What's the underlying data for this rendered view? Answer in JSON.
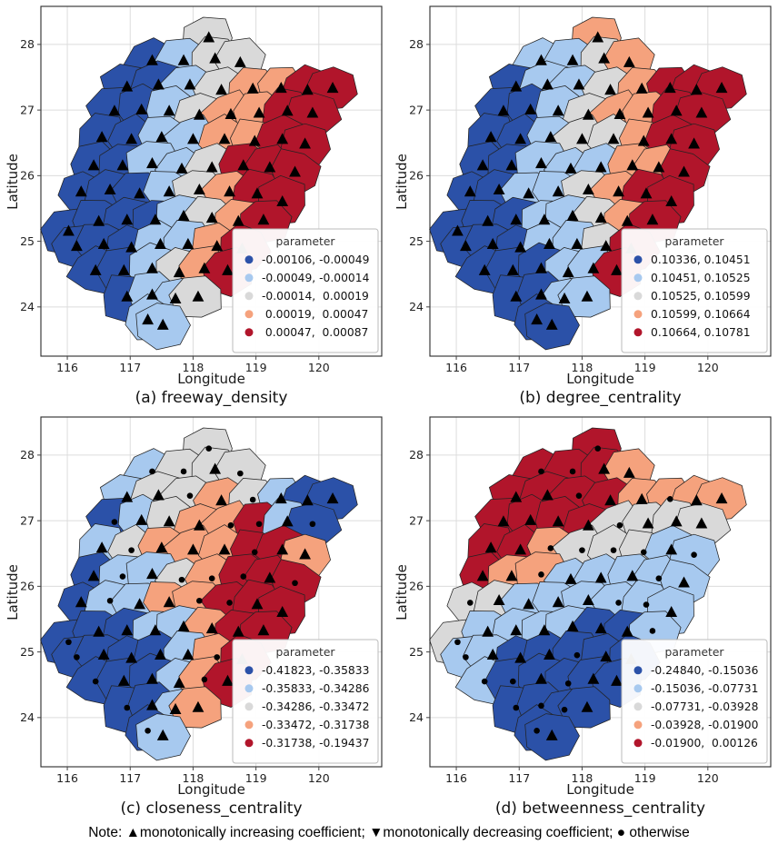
{
  "figure": {
    "note": "Note: ▲monotonically increasing coefficient; ▼monotonically decreasing coefficient; ● otherwise",
    "note_markers": [
      {
        "symbol": "▲",
        "meaning": "monotonically increasing coefficient"
      },
      {
        "symbol": "▼",
        "meaning": "monotonically decreasing coefficient"
      },
      {
        "symbol": "●",
        "meaning": "otherwise"
      }
    ]
  },
  "axes": {
    "xlabel": "Longitude",
    "ylabel": "Latitude",
    "xticks": [
      116,
      117,
      118,
      119,
      120
    ],
    "yticks": [
      24,
      25,
      26,
      27,
      28
    ],
    "xlim": [
      115.58,
      121.0
    ],
    "ylim": [
      23.25,
      28.58
    ],
    "grid": true
  },
  "palette": {
    "class_colors": [
      "#2b51a8",
      "#a7c9ef",
      "#d9d9d9",
      "#f5a27d",
      "#b1152b"
    ],
    "class_names": [
      "dark-blue",
      "light-blue",
      "gray",
      "salmon",
      "dark-red"
    ],
    "grid_color": "#dcdcdc",
    "border_color": "#2a2a2a",
    "marker_color": "#000000",
    "legend_bg": "#ffffff",
    "legend_border": "#bbbbbb"
  },
  "chart_data": [
    {
      "type": "choropleth",
      "panel": "a",
      "caption": "(a) freeway_density",
      "variable": "freeway_density",
      "legend": {
        "title": "parameter",
        "classes": [
          {
            "label": "-0.00106, -0.00049",
            "range": [
              -0.00106,
              -0.00049
            ],
            "color": "#2b51a8"
          },
          {
            "label": "-0.00049, -0.00014",
            "range": [
              -0.00049,
              -0.00014
            ],
            "color": "#a7c9ef"
          },
          {
            "label": "-0.00014,  0.00019",
            "range": [
              -0.00014,
              0.00019
            ],
            "color": "#d9d9d9"
          },
          {
            "label": " 0.00019,  0.00047",
            "range": [
              0.00019,
              0.00047
            ],
            "color": "#f5a27d"
          },
          {
            "label": " 0.00047,  0.00087",
            "range": [
              0.00047,
              0.00087
            ],
            "color": "#b1152b"
          }
        ]
      }
    },
    {
      "type": "choropleth",
      "panel": "b",
      "caption": "(b) degree_centrality",
      "variable": "degree_centrality",
      "legend": {
        "title": "parameter",
        "classes": [
          {
            "label": "0.10336, 0.10451",
            "range": [
              0.10336,
              0.10451
            ],
            "color": "#2b51a8"
          },
          {
            "label": "0.10451, 0.10525",
            "range": [
              0.10451,
              0.10525
            ],
            "color": "#a7c9ef"
          },
          {
            "label": "0.10525, 0.10599",
            "range": [
              0.10525,
              0.10599
            ],
            "color": "#d9d9d9"
          },
          {
            "label": "0.10599, 0.10664",
            "range": [
              0.10599,
              0.10664
            ],
            "color": "#f5a27d"
          },
          {
            "label": "0.10664, 0.10781",
            "range": [
              0.10664,
              0.10781
            ],
            "color": "#b1152b"
          }
        ]
      }
    },
    {
      "type": "choropleth",
      "panel": "c",
      "caption": "(c) closeness_centrality",
      "variable": "closeness_centrality",
      "legend": {
        "title": "parameter",
        "classes": [
          {
            "label": "-0.41823, -0.35833",
            "range": [
              -0.41823,
              -0.35833
            ],
            "color": "#2b51a8"
          },
          {
            "label": "-0.35833, -0.34286",
            "range": [
              -0.35833,
              -0.34286
            ],
            "color": "#a7c9ef"
          },
          {
            "label": "-0.34286, -0.33472",
            "range": [
              -0.34286,
              -0.33472
            ],
            "color": "#d9d9d9"
          },
          {
            "label": "-0.33472, -0.31738",
            "range": [
              -0.33472,
              -0.31738
            ],
            "color": "#f5a27d"
          },
          {
            "label": "-0.31738, -0.19437",
            "range": [
              -0.31738,
              -0.19437
            ],
            "color": "#b1152b"
          }
        ]
      }
    },
    {
      "type": "choropleth",
      "panel": "d",
      "caption": "(d) betweenness_centrality",
      "variable": "betweenness_centrality",
      "legend": {
        "title": "parameter",
        "classes": [
          {
            "label": "-0.24840, -0.15036",
            "range": [
              -0.2484,
              -0.15036
            ],
            "color": "#2b51a8"
          },
          {
            "label": "-0.15036, -0.07731",
            "range": [
              -0.15036,
              -0.07731
            ],
            "color": "#a7c9ef"
          },
          {
            "label": "-0.07731, -0.03928",
            "range": [
              -0.07731,
              -0.03928
            ],
            "color": "#d9d9d9"
          },
          {
            "label": "-0.03928, -0.01900",
            "range": [
              -0.03928,
              -0.019
            ],
            "color": "#f5a27d"
          },
          {
            "label": "-0.01900,  0.00126",
            "range": [
              -0.019,
              0.00126
            ],
            "color": "#b1152b"
          }
        ]
      }
    }
  ],
  "regions": [
    {
      "lon": 118.25,
      "lat": 28.1,
      "cls": [
        2,
        3,
        2,
        4
      ],
      "mk": [
        "t",
        "t",
        "d",
        "d"
      ]
    },
    {
      "lon": 117.35,
      "lat": 27.75,
      "cls": [
        0,
        1,
        1,
        4
      ],
      "mk": [
        "t",
        "t",
        "d",
        "d"
      ]
    },
    {
      "lon": 117.85,
      "lat": 27.75,
      "cls": [
        1,
        1,
        2,
        4
      ],
      "mk": [
        "t",
        "t",
        "d",
        "d"
      ]
    },
    {
      "lon": 118.35,
      "lat": 27.78,
      "cls": [
        2,
        2,
        2,
        4
      ],
      "mk": [
        "t",
        "t",
        "t",
        "t"
      ]
    },
    {
      "lon": 118.75,
      "lat": 27.72,
      "cls": [
        2,
        3,
        2,
        3
      ],
      "mk": [
        "t",
        "t",
        "d",
        "t"
      ]
    },
    {
      "lon": 116.95,
      "lat": 27.35,
      "cls": [
        0,
        0,
        1,
        4
      ],
      "mk": [
        "t",
        "t",
        "t",
        "t"
      ]
    },
    {
      "lon": 117.45,
      "lat": 27.38,
      "cls": [
        0,
        1,
        2,
        4
      ],
      "mk": [
        "t",
        "t",
        "t",
        "t"
      ]
    },
    {
      "lon": 117.95,
      "lat": 27.38,
      "cls": [
        1,
        1,
        2,
        4
      ],
      "mk": [
        "t",
        "t",
        "d",
        "d"
      ]
    },
    {
      "lon": 118.45,
      "lat": 27.3,
      "cls": [
        2,
        2,
        3,
        4
      ],
      "mk": [
        "t",
        "t",
        "t",
        "t"
      ]
    },
    {
      "lon": 118.95,
      "lat": 27.32,
      "cls": [
        3,
        3,
        2,
        3
      ],
      "mk": [
        "t",
        "t",
        "d",
        "t"
      ]
    },
    {
      "lon": 119.4,
      "lat": 27.33,
      "cls": [
        3,
        4,
        1,
        3
      ],
      "mk": [
        "t",
        "t",
        "t",
        "d"
      ]
    },
    {
      "lon": 119.82,
      "lat": 27.3,
      "cls": [
        4,
        4,
        0,
        3
      ],
      "mk": [
        "t",
        "t",
        "t",
        "t"
      ]
    },
    {
      "lon": 120.22,
      "lat": 27.33,
      "cls": [
        4,
        4,
        0,
        3
      ],
      "mk": [
        "t",
        "t",
        "t",
        "t"
      ]
    },
    {
      "lon": 116.75,
      "lat": 26.98,
      "cls": [
        0,
        0,
        0,
        4
      ],
      "mk": [
        "t",
        "t",
        "d",
        "t"
      ]
    },
    {
      "lon": 117.18,
      "lat": 27.0,
      "cls": [
        0,
        0,
        1,
        4
      ],
      "mk": [
        "t",
        "t",
        "t",
        "t"
      ]
    },
    {
      "lon": 117.62,
      "lat": 26.98,
      "cls": [
        1,
        1,
        2,
        4
      ],
      "mk": [
        "t",
        "t",
        "t",
        "t"
      ]
    },
    {
      "lon": 118.1,
      "lat": 26.92,
      "cls": [
        2,
        2,
        3,
        4
      ],
      "mk": [
        "t",
        "t",
        "t",
        "t"
      ]
    },
    {
      "lon": 118.6,
      "lat": 26.93,
      "cls": [
        3,
        3,
        3,
        2
      ],
      "mk": [
        "t",
        "t",
        "d",
        "d"
      ]
    },
    {
      "lon": 119.05,
      "lat": 26.95,
      "cls": [
        3,
        3,
        4,
        2
      ],
      "mk": [
        "t",
        "t",
        "d",
        "t"
      ]
    },
    {
      "lon": 119.5,
      "lat": 26.98,
      "cls": [
        4,
        4,
        1,
        2
      ],
      "mk": [
        "t",
        "t",
        "t",
        "t"
      ]
    },
    {
      "lon": 119.9,
      "lat": 26.95,
      "cls": [
        4,
        4,
        0,
        2
      ],
      "mk": [
        "t",
        "t",
        "d",
        "t"
      ]
    },
    {
      "lon": 116.55,
      "lat": 26.58,
      "cls": [
        0,
        0,
        1,
        4
      ],
      "mk": [
        "t",
        "t",
        "t",
        "t"
      ]
    },
    {
      "lon": 117.02,
      "lat": 26.55,
      "cls": [
        0,
        0,
        2,
        4
      ],
      "mk": [
        "t",
        "t",
        "d",
        "t"
      ]
    },
    {
      "lon": 117.5,
      "lat": 26.58,
      "cls": [
        1,
        1,
        3,
        3
      ],
      "mk": [
        "t",
        "t",
        "t",
        "d"
      ]
    },
    {
      "lon": 118.0,
      "lat": 26.55,
      "cls": [
        1,
        2,
        3,
        2
      ],
      "mk": [
        "t",
        "t",
        "t",
        "d"
      ]
    },
    {
      "lon": 118.5,
      "lat": 26.55,
      "cls": [
        3,
        2,
        3,
        2
      ],
      "mk": [
        "t",
        "t",
        "t",
        "d"
      ]
    },
    {
      "lon": 118.98,
      "lat": 26.52,
      "cls": [
        3,
        3,
        4,
        2
      ],
      "mk": [
        "t",
        "t",
        "d",
        "d"
      ]
    },
    {
      "lon": 119.42,
      "lat": 26.55,
      "cls": [
        4,
        4,
        4,
        1
      ],
      "mk": [
        "t",
        "t",
        "t",
        "t"
      ]
    },
    {
      "lon": 119.78,
      "lat": 26.48,
      "cls": [
        4,
        4,
        3,
        1
      ],
      "mk": [
        "t",
        "t",
        "t",
        "d"
      ]
    },
    {
      "lon": 116.42,
      "lat": 26.15,
      "cls": [
        0,
        0,
        0,
        4
      ],
      "mk": [
        "t",
        "t",
        "t",
        "t"
      ]
    },
    {
      "lon": 116.88,
      "lat": 26.15,
      "cls": [
        0,
        0,
        1,
        3
      ],
      "mk": [
        "t",
        "t",
        "d",
        "t"
      ]
    },
    {
      "lon": 117.35,
      "lat": 26.18,
      "cls": [
        1,
        1,
        1,
        3
      ],
      "mk": [
        "t",
        "t",
        "t",
        "d"
      ]
    },
    {
      "lon": 117.82,
      "lat": 26.1,
      "cls": [
        1,
        1,
        2,
        1
      ],
      "mk": [
        "t",
        "t",
        "d",
        "t"
      ]
    },
    {
      "lon": 118.3,
      "lat": 26.12,
      "cls": [
        2,
        1,
        3,
        1
      ],
      "mk": [
        "t",
        "t",
        "d",
        "t"
      ]
    },
    {
      "lon": 118.8,
      "lat": 26.15,
      "cls": [
        4,
        3,
        4,
        1
      ],
      "mk": [
        "t",
        "t",
        "d",
        "t"
      ]
    },
    {
      "lon": 119.22,
      "lat": 26.12,
      "cls": [
        4,
        3,
        4,
        1
      ],
      "mk": [
        "t",
        "t",
        "t",
        "d"
      ]
    },
    {
      "lon": 119.62,
      "lat": 26.05,
      "cls": [
        4,
        4,
        4,
        1
      ],
      "mk": [
        "t",
        "t",
        "d",
        "t"
      ]
    },
    {
      "lon": 116.22,
      "lat": 25.75,
      "cls": [
        0,
        0,
        0,
        2
      ],
      "mk": [
        "t",
        "t",
        "t",
        "d"
      ]
    },
    {
      "lon": 116.68,
      "lat": 25.78,
      "cls": [
        0,
        0,
        1,
        2
      ],
      "mk": [
        "t",
        "t",
        "d",
        "t"
      ]
    },
    {
      "lon": 117.15,
      "lat": 25.72,
      "cls": [
        0,
        1,
        1,
        1
      ],
      "mk": [
        "t",
        "t",
        "t",
        "t"
      ]
    },
    {
      "lon": 117.62,
      "lat": 25.75,
      "cls": [
        1,
        1,
        3,
        1
      ],
      "mk": [
        "t",
        "t",
        "t",
        "t"
      ]
    },
    {
      "lon": 118.1,
      "lat": 25.78,
      "cls": [
        2,
        2,
        3,
        1
      ],
      "mk": [
        "t",
        "t",
        "d",
        "t"
      ]
    },
    {
      "lon": 118.58,
      "lat": 25.75,
      "cls": [
        3,
        3,
        4,
        1
      ],
      "mk": [
        "t",
        "t",
        "d",
        "d"
      ]
    },
    {
      "lon": 119.02,
      "lat": 25.72,
      "cls": [
        4,
        4,
        4,
        1
      ],
      "mk": [
        "t",
        "t",
        "t",
        "d"
      ]
    },
    {
      "lon": 119.42,
      "lat": 25.6,
      "cls": [
        4,
        4,
        4,
        1
      ],
      "mk": [
        "t",
        "t",
        "t",
        "t"
      ]
    },
    {
      "lon": 116.02,
      "lat": 25.15,
      "cls": [
        0,
        0,
        0,
        2
      ],
      "mk": [
        "t",
        "t",
        "d",
        "d"
      ]
    },
    {
      "lon": 116.5,
      "lat": 25.3,
      "cls": [
        0,
        0,
        0,
        1
      ],
      "mk": [
        "t",
        "t",
        "t",
        "t"
      ]
    },
    {
      "lon": 116.95,
      "lat": 25.32,
      "cls": [
        0,
        0,
        0,
        1
      ],
      "mk": [
        "t",
        "t",
        "t",
        "t"
      ]
    },
    {
      "lon": 117.4,
      "lat": 25.32,
      "cls": [
        0,
        1,
        1,
        1
      ],
      "mk": [
        "t",
        "t",
        "t",
        "t"
      ]
    },
    {
      "lon": 117.85,
      "lat": 25.38,
      "cls": [
        1,
        1,
        1,
        1
      ],
      "mk": [
        "t",
        "t",
        "t",
        "t"
      ]
    },
    {
      "lon": 118.3,
      "lat": 25.35,
      "cls": [
        2,
        2,
        3,
        0
      ],
      "mk": [
        "t",
        "t",
        "t",
        "t"
      ]
    },
    {
      "lon": 118.72,
      "lat": 25.3,
      "cls": [
        3,
        3,
        4,
        0
      ],
      "mk": [
        "t",
        "t",
        "t",
        "t"
      ]
    },
    {
      "lon": 119.12,
      "lat": 25.32,
      "cls": [
        4,
        4,
        4,
        1
      ],
      "mk": [
        "t",
        "t",
        "t",
        "d"
      ]
    },
    {
      "lon": 116.15,
      "lat": 24.92,
      "cls": [
        0,
        0,
        0,
        1
      ],
      "mk": [
        "t",
        "t",
        "d",
        "d"
      ]
    },
    {
      "lon": 116.58,
      "lat": 24.95,
      "cls": [
        0,
        0,
        0,
        1
      ],
      "mk": [
        "t",
        "t",
        "t",
        "t"
      ]
    },
    {
      "lon": 117.02,
      "lat": 24.9,
      "cls": [
        0,
        0,
        0,
        0
      ],
      "mk": [
        "t",
        "t",
        "t",
        "t"
      ]
    },
    {
      "lon": 117.48,
      "lat": 24.95,
      "cls": [
        1,
        1,
        0,
        0
      ],
      "mk": [
        "t",
        "t",
        "t",
        "t"
      ]
    },
    {
      "lon": 117.92,
      "lat": 24.95,
      "cls": [
        1,
        1,
        1,
        0
      ],
      "mk": [
        "t",
        "t",
        "t",
        "d"
      ]
    },
    {
      "lon": 118.38,
      "lat": 24.92,
      "cls": [
        3,
        2,
        3,
        0
      ],
      "mk": [
        "t",
        "t",
        "d",
        "t"
      ]
    },
    {
      "lon": 118.78,
      "lat": 24.88,
      "cls": [
        4,
        4,
        4,
        0
      ],
      "mk": [
        "t",
        "t",
        "t",
        "t"
      ]
    },
    {
      "lon": 116.45,
      "lat": 24.55,
      "cls": [
        0,
        0,
        0,
        1
      ],
      "mk": [
        "t",
        "t",
        "d",
        "d"
      ]
    },
    {
      "lon": 116.9,
      "lat": 24.55,
      "cls": [
        0,
        0,
        0,
        0
      ],
      "mk": [
        "t",
        "t",
        "t",
        "d"
      ]
    },
    {
      "lon": 117.35,
      "lat": 24.58,
      "cls": [
        1,
        0,
        0,
        0
      ],
      "mk": [
        "t",
        "t",
        "t",
        "t"
      ]
    },
    {
      "lon": 117.78,
      "lat": 24.52,
      "cls": [
        2,
        1,
        1,
        0
      ],
      "mk": [
        "t",
        "t",
        "t",
        "d"
      ]
    },
    {
      "lon": 118.18,
      "lat": 24.58,
      "cls": [
        3,
        1,
        3,
        0
      ],
      "mk": [
        "t",
        "t",
        "d",
        "t"
      ]
    },
    {
      "lon": 118.55,
      "lat": 24.55,
      "cls": [
        4,
        4,
        4,
        0
      ],
      "mk": [
        "t",
        "t",
        "t",
        "t"
      ]
    },
    {
      "lon": 116.95,
      "lat": 24.15,
      "cls": [
        0,
        0,
        0,
        0
      ],
      "mk": [
        "t",
        "t",
        "d",
        "d"
      ]
    },
    {
      "lon": 117.35,
      "lat": 24.18,
      "cls": [
        1,
        0,
        0,
        0
      ],
      "mk": [
        "t",
        "t",
        "t",
        "d"
      ]
    },
    {
      "lon": 117.72,
      "lat": 24.12,
      "cls": [
        1,
        1,
        1,
        0
      ],
      "mk": [
        "t",
        "t",
        "t",
        "d"
      ]
    },
    {
      "lon": 118.08,
      "lat": 24.15,
      "cls": [
        2,
        1,
        3,
        0
      ],
      "mk": [
        "t",
        "t",
        "t",
        "t"
      ]
    },
    {
      "lon": 117.28,
      "lat": 23.8,
      "cls": [
        1,
        0,
        0,
        0
      ],
      "mk": [
        "t",
        "t",
        "d",
        "d"
      ]
    },
    {
      "lon": 117.52,
      "lat": 23.72,
      "cls": [
        1,
        0,
        1,
        0
      ],
      "mk": [
        "t",
        "t",
        "t",
        "t"
      ]
    }
  ]
}
